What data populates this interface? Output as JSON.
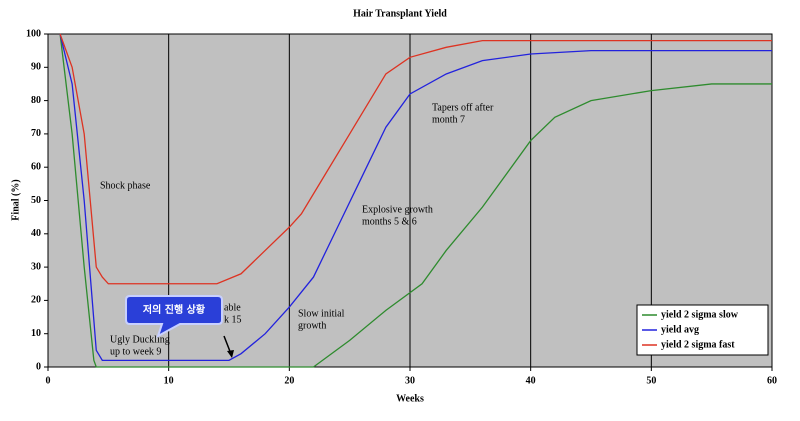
{
  "chart_data": {
    "type": "line",
    "title": "Hair Transplant Yield",
    "x_label": "Weeks",
    "y_label": "Final (%)",
    "xlim": [
      0,
      60
    ],
    "xticks": [
      0,
      10,
      20,
      30,
      40,
      50,
      60
    ],
    "ylim": [
      0,
      100
    ],
    "yticks": [
      0,
      10,
      20,
      30,
      40,
      50,
      60,
      70,
      80,
      90,
      100
    ],
    "grid": true,
    "legend": "lower right",
    "series": [
      {
        "name": "yield 2 sigma slow",
        "color": "#2e8b2e",
        "x": [
          1,
          2,
          3,
          3.8,
          4,
          22,
          25,
          28,
          31,
          33,
          36,
          40,
          42,
          45,
          50,
          55,
          60
        ],
        "values": [
          100,
          70,
          30,
          2,
          0,
          0,
          8,
          17,
          25,
          35,
          48,
          68,
          75,
          80,
          83,
          85,
          85
        ]
      },
      {
        "name": "yield avg",
        "color": "#2222dd",
        "x": [
          1,
          2,
          3,
          4,
          4.5,
          15,
          16,
          18,
          20,
          22,
          24,
          26,
          28,
          30,
          33,
          36,
          40,
          45,
          60
        ],
        "values": [
          100,
          85,
          50,
          5,
          2,
          2,
          4,
          10,
          18,
          27,
          42,
          57,
          72,
          82,
          88,
          92,
          94,
          95,
          95
        ]
      },
      {
        "name": "yield 2 sigma fast",
        "color": "#dd3322",
        "x": [
          1,
          2,
          3,
          4,
          4.5,
          5,
          14,
          16,
          18,
          20,
          21,
          23,
          25,
          27,
          28,
          30,
          33,
          36,
          60
        ],
        "values": [
          100,
          90,
          70,
          30,
          27,
          25,
          25,
          28,
          35,
          42,
          46,
          58,
          70,
          82,
          88,
          93,
          96,
          98,
          98
        ]
      }
    ],
    "annotations": [
      [
        "Shock phase"
      ],
      [
        "Tapers off after",
        "month 7"
      ],
      [
        "Explosive growth",
        "months 5 & 6"
      ],
      [
        "Slow initial",
        "growth"
      ],
      [
        "Ugly Duckling",
        "up to week 9"
      ],
      [
        "able",
        "k 15"
      ]
    ],
    "callout": "저의 진행 상황"
  }
}
